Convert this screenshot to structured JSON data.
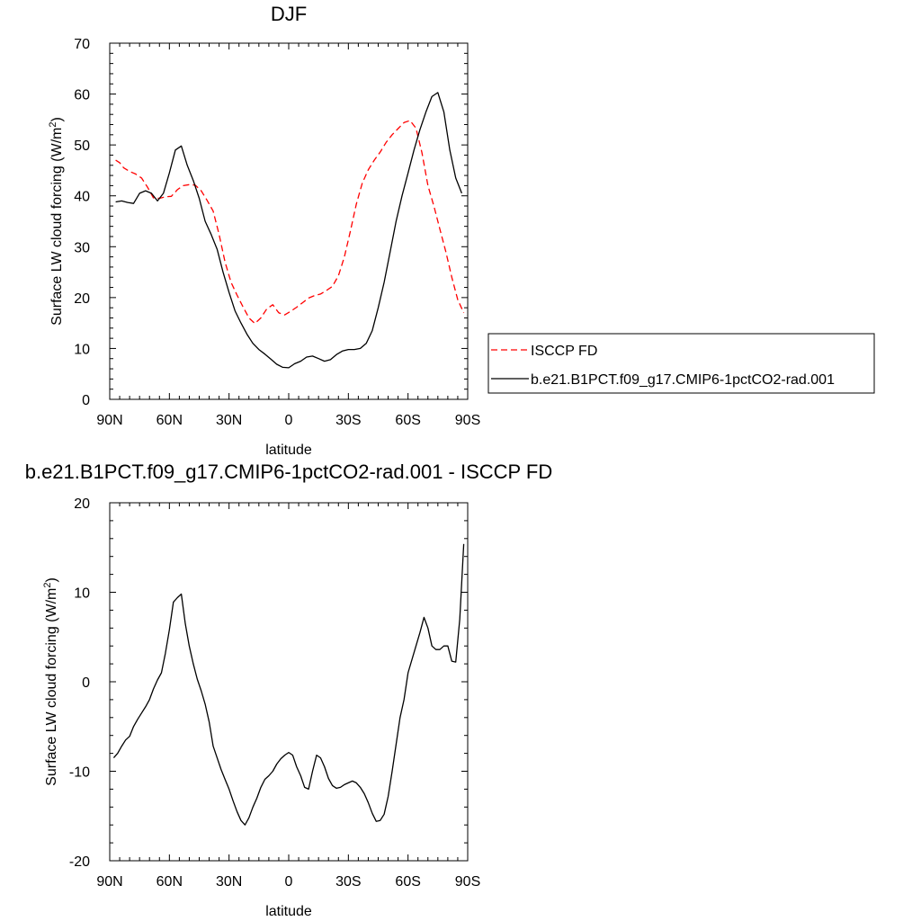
{
  "chart_data": [
    {
      "type": "line",
      "title": "DJF",
      "xlabel": "latitude",
      "ylabel": "Surface LW cloud forcing (W/m",
      "ylabel_sup": "2",
      "ylabel_close": ")",
      "xlim": [
        90,
        -90
      ],
      "ylim": [
        0,
        70
      ],
      "xticks": [
        90,
        60,
        30,
        0,
        -30,
        -60,
        -90
      ],
      "xticklabels": [
        "90N",
        "60N",
        "30N",
        "0",
        "30S",
        "60S",
        "90S"
      ],
      "yticks": [
        0,
        10,
        20,
        30,
        40,
        50,
        60,
        70
      ],
      "yticklabels": [
        "0",
        "10",
        "20",
        "30",
        "40",
        "50",
        "60",
        "70"
      ],
      "legend_position": "right",
      "series": [
        {
          "name": "ISCCP FD",
          "color": "#ff0000",
          "dash": "dashed",
          "x": [
            87,
            85,
            83,
            80,
            77,
            74,
            71,
            68,
            65,
            62,
            59,
            56,
            53,
            50,
            47,
            44,
            41,
            38,
            35,
            32,
            29,
            26,
            23,
            20,
            17,
            14,
            11,
            8,
            5,
            2,
            -1,
            -4,
            -7,
            -10,
            -13,
            -16,
            -19,
            -22,
            -25,
            -28,
            -31,
            -34,
            -37,
            -40,
            -43,
            -46,
            -49,
            -52,
            -55,
            -58,
            -61,
            -64,
            -67,
            -70,
            -73,
            -76,
            -79,
            -82,
            -85,
            -88
          ],
          "y": [
            47.0,
            46.5,
            45.5,
            44.8,
            44.3,
            43.5,
            41.7,
            39.6,
            39.5,
            39.8,
            39.9,
            41.2,
            42.0,
            42.2,
            42.1,
            41.0,
            39.1,
            37.0,
            32.4,
            27.0,
            23.0,
            20.5,
            18.2,
            16.0,
            14.9,
            16.0,
            17.8,
            18.6,
            17.0,
            16.6,
            17.3,
            18.1,
            19.0,
            19.9,
            20.4,
            20.7,
            21.4,
            22.2,
            24.3,
            28.0,
            33.0,
            38.4,
            42.5,
            45.1,
            47.0,
            48.6,
            50.5,
            52.0,
            53.2,
            54.4,
            54.8,
            53.3,
            48.5,
            42.0,
            38.0,
            33.5,
            29.0,
            24.0,
            19.6,
            17.0
          ]
        },
        {
          "name": "b.e21.B1PCT.f09_g17.CMIP6-1pctCO2-rad.001",
          "color": "#000000",
          "dash": "solid",
          "x": [
            87,
            84,
            81,
            78,
            75,
            72,
            69,
            66,
            63,
            60,
            57,
            54,
            51,
            48,
            45,
            42,
            39,
            36,
            33,
            30,
            27,
            24,
            21,
            18,
            15,
            12,
            9,
            6,
            3,
            0,
            -3,
            -6,
            -9,
            -12,
            -15,
            -18,
            -21,
            -24,
            -27,
            -30,
            -33,
            -36,
            -39,
            -42,
            -45,
            -48,
            -51,
            -54,
            -57,
            -60,
            -63,
            -66,
            -69,
            -72,
            -75,
            -78,
            -81,
            -84,
            -87
          ],
          "y": [
            38.8,
            39.0,
            38.7,
            38.5,
            40.5,
            41.0,
            40.5,
            39.0,
            40.5,
            44.5,
            49.0,
            49.8,
            46.0,
            43.0,
            39.5,
            35.0,
            32.4,
            29.5,
            25.0,
            21.0,
            17.4,
            15.0,
            12.8,
            11.0,
            9.8,
            8.9,
            7.9,
            6.9,
            6.3,
            6.2,
            7.0,
            7.5,
            8.3,
            8.5,
            8.0,
            7.5,
            7.8,
            8.8,
            9.5,
            9.8,
            9.8,
            10.0,
            11.0,
            13.5,
            18.0,
            23.0,
            29.0,
            35.0,
            40.0,
            44.5,
            49.0,
            53.0,
            56.5,
            59.5,
            60.3,
            56.5,
            49.0,
            43.5,
            40.5
          ]
        }
      ]
    },
    {
      "type": "line",
      "title": "b.e21.B1PCT.f09_g17.CMIP6-1pctCO2-rad.001 - ISCCP FD",
      "xlabel": "latitude",
      "ylabel": "Surface LW cloud forcing (W/m",
      "ylabel_sup": "2",
      "ylabel_close": ")",
      "xlim": [
        90,
        -90
      ],
      "ylim": [
        -20,
        20
      ],
      "xticks": [
        90,
        60,
        30,
        0,
        -30,
        -60,
        -90
      ],
      "xticklabels": [
        "90N",
        "60N",
        "30N",
        "0",
        "30S",
        "60S",
        "90S"
      ],
      "yticks": [
        -20,
        -10,
        0,
        10,
        20
      ],
      "yticklabels": [
        "-20",
        "-10",
        "0",
        "10",
        "20"
      ],
      "series": [
        {
          "color": "#000000",
          "dash": "solid",
          "x": [
            88,
            86,
            84,
            82,
            80,
            78,
            76,
            74,
            72,
            70,
            68,
            66,
            64,
            62,
            60,
            58,
            56,
            54,
            52,
            50,
            48,
            46,
            44,
            42,
            40,
            38,
            36,
            34,
            32,
            30,
            28,
            26,
            24,
            22,
            20,
            18,
            16,
            14,
            12,
            10,
            8,
            6,
            4,
            2,
            0,
            -2,
            -4,
            -6,
            -8,
            -10,
            -12,
            -14,
            -16,
            -18,
            -20,
            -22,
            -24,
            -26,
            -28,
            -30,
            -32,
            -34,
            -36,
            -38,
            -40,
            -42,
            -44,
            -46,
            -48,
            -50,
            -52,
            -54,
            -56,
            -58,
            -60,
            -62,
            -64,
            -66,
            -68,
            -70,
            -72,
            -74,
            -76,
            -78,
            -80,
            -82,
            -84,
            -86,
            -88
          ],
          "y": [
            -8.5,
            -8.0,
            -7.2,
            -6.5,
            -6.1,
            -5.0,
            -4.2,
            -3.5,
            -2.8,
            -2.0,
            -0.8,
            0.2,
            1.0,
            3.2,
            5.8,
            8.9,
            9.4,
            9.8,
            6.5,
            4.0,
            2.0,
            0.3,
            -1.0,
            -2.5,
            -4.5,
            -7.2,
            -8.5,
            -9.8,
            -10.9,
            -12.0,
            -13.3,
            -14.5,
            -15.5,
            -16.0,
            -15.2,
            -14.0,
            -13.0,
            -11.8,
            -10.9,
            -10.5,
            -10.0,
            -9.2,
            -8.6,
            -8.2,
            -7.9,
            -8.2,
            -9.5,
            -10.5,
            -11.8,
            -12.0,
            -10.0,
            -8.2,
            -8.5,
            -9.5,
            -10.8,
            -11.6,
            -11.9,
            -11.8,
            -11.5,
            -11.3,
            -11.1,
            -11.3,
            -11.8,
            -12.5,
            -13.5,
            -14.7,
            -15.6,
            -15.5,
            -14.8,
            -12.8,
            -10.0,
            -7.0,
            -4.0,
            -2.0,
            1.0,
            2.5,
            4.0,
            5.5,
            7.2,
            6.0,
            4.0,
            3.6,
            3.6,
            4.0,
            4.0,
            2.3,
            2.2,
            7.0,
            15.4
          ]
        }
      ]
    }
  ]
}
